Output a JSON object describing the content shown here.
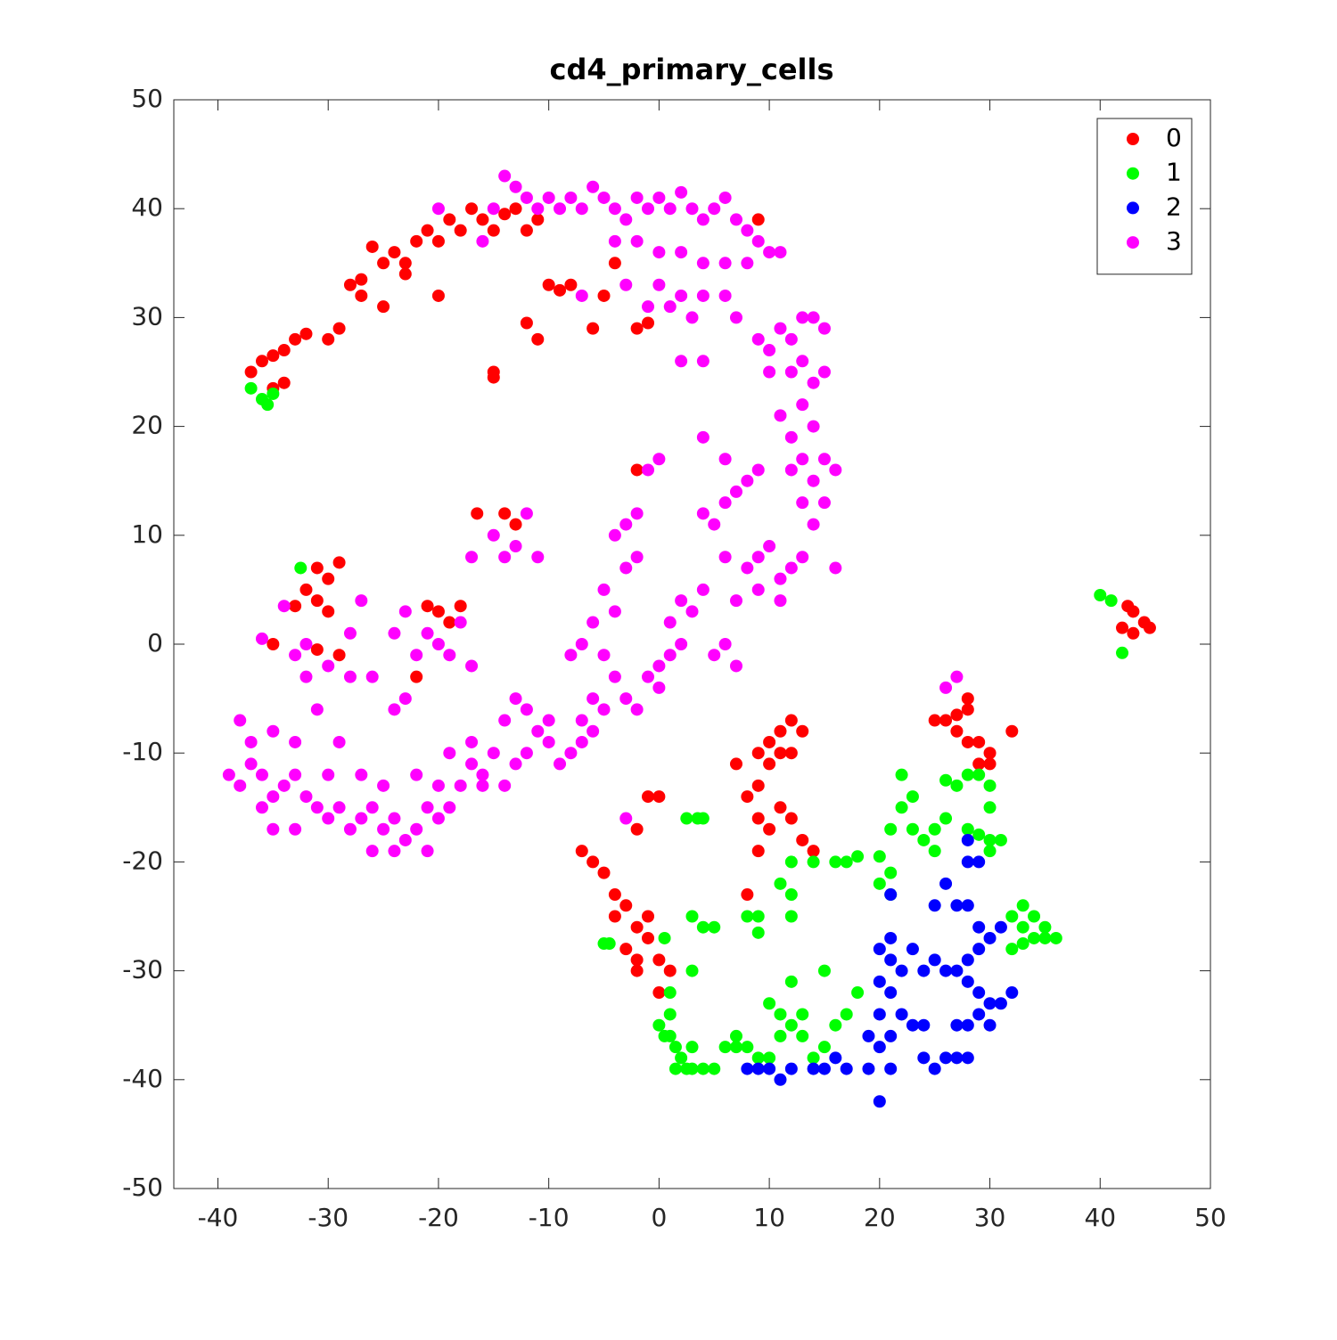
{
  "chart_data": {
    "type": "scatter",
    "title": "cd4_primary_cells",
    "xlim": [
      -44,
      50
    ],
    "ylim": [
      -50,
      50
    ],
    "xticks": [
      -40,
      -30,
      -20,
      -10,
      0,
      10,
      20,
      30,
      40,
      50
    ],
    "yticks": [
      -50,
      -40,
      -30,
      -20,
      -10,
      0,
      10,
      20,
      30,
      40,
      50
    ],
    "legend": "upper right",
    "series": [
      {
        "name": "0",
        "color": "#ff0000",
        "x": [
          -37,
          -36,
          -35,
          -34,
          -33,
          -32,
          -30,
          -29,
          -28,
          -27,
          -26,
          -25,
          -24,
          -23,
          -22,
          -21,
          -20,
          -19,
          -18,
          -17,
          -16,
          -15,
          -14,
          -13,
          -12,
          -11,
          -10,
          -9,
          -8,
          -6,
          -5,
          -4,
          -2,
          -1,
          9,
          -15,
          -15,
          -12,
          -11,
          -20,
          -34,
          -35,
          -25,
          -27,
          -23,
          -16.5,
          -14,
          -13,
          -2,
          -31,
          -30,
          -32,
          -31,
          -33,
          -30,
          -29,
          -35,
          -31,
          -29,
          -21,
          -20,
          -18,
          -19,
          -22,
          43,
          44,
          43,
          42,
          44.5,
          42.5,
          9,
          10,
          11,
          12,
          11,
          10,
          9,
          8,
          9,
          10,
          11,
          12,
          13,
          9,
          7,
          14,
          12,
          13,
          8,
          -7,
          -6,
          -5,
          -4,
          -3,
          -2,
          -3,
          -2,
          -1,
          -2,
          -1,
          0,
          1,
          0,
          -2,
          -1,
          0,
          -4,
          26,
          27,
          28,
          28,
          29,
          30,
          29,
          30,
          28,
          25,
          32,
          27
        ],
        "values": [
          25,
          26,
          26.5,
          27,
          28,
          28.5,
          28,
          29,
          33,
          33.5,
          36.5,
          35,
          36,
          35,
          37,
          38,
          37,
          39,
          38,
          40,
          39,
          38,
          39.5,
          40,
          38,
          39,
          33,
          32.5,
          33,
          29,
          32,
          35,
          29,
          29.5,
          39,
          25,
          24.5,
          29.5,
          28,
          32,
          24,
          23.5,
          31,
          32,
          34,
          12,
          12,
          11,
          16,
          7,
          6,
          5,
          4,
          3.5,
          3,
          7.5,
          0,
          -0.5,
          -1,
          3.5,
          3,
          3.5,
          2,
          -3,
          1,
          2,
          3,
          1.5,
          1.5,
          3.5,
          -10,
          -9,
          -8,
          -7,
          -10,
          -11,
          -13,
          -14,
          -16,
          -17,
          -15,
          -16,
          -18,
          -19,
          -11,
          -19,
          -10,
          -8,
          -23,
          -19,
          -20,
          -21,
          -23,
          -24,
          -26,
          -28,
          -29,
          -27,
          -30,
          -25,
          -29,
          -30,
          -32,
          -17,
          -14,
          -14,
          -25,
          -7,
          -8,
          -6,
          -5,
          -9,
          -10,
          -11,
          -11,
          -9,
          -7,
          -8,
          -6.5
        ]
      },
      {
        "name": "1",
        "color": "#00ff00",
        "x": [
          -37,
          -36,
          -35.5,
          -35,
          -32.5,
          40,
          41,
          42,
          -5,
          -4.5,
          0.5,
          1,
          1,
          1,
          0,
          0.5,
          1.5,
          2,
          3,
          2.5,
          3,
          4,
          5,
          1.5,
          3,
          3,
          4,
          5,
          2.5,
          3.5,
          4,
          6,
          7,
          8,
          7,
          9,
          10,
          11,
          10,
          11,
          12,
          13,
          12,
          13,
          14,
          15,
          15,
          16,
          17,
          18,
          8,
          9,
          9,
          11,
          12,
          12,
          14,
          12,
          16,
          17,
          18,
          20,
          21,
          20,
          21,
          21,
          22,
          23,
          24,
          25,
          25,
          26,
          22,
          23,
          26,
          27,
          28,
          29,
          30,
          30,
          30,
          31,
          29,
          28,
          30,
          33,
          33,
          34,
          35,
          35,
          32,
          32,
          33,
          34,
          36
        ],
        "values": [
          23.5,
          22.5,
          22,
          23,
          7,
          4.5,
          4,
          -0.8,
          -27.5,
          -27.5,
          -27,
          -32,
          -34,
          -36,
          -35,
          -36,
          -37,
          -38,
          -37,
          -39,
          -39,
          -39,
          -39,
          -39,
          -30,
          -25,
          -26,
          -26,
          -16,
          -16,
          -16,
          -37,
          -37,
          -37,
          -36,
          -38,
          -38,
          -36,
          -33,
          -34,
          -35,
          -34,
          -31,
          -36,
          -38,
          -37,
          -30,
          -35,
          -34,
          -32,
          -25,
          -25,
          -26.5,
          -22,
          -20,
          -23,
          -20,
          -25,
          -20,
          -20,
          -19.5,
          -19.5,
          -21,
          -22,
          -23,
          -17,
          -15,
          -17,
          -18,
          -17,
          -19,
          -16,
          -12,
          -14,
          -12.5,
          -13,
          -12,
          -12,
          -13,
          -15,
          -18,
          -18,
          -17.5,
          -17,
          -19,
          -24,
          -26,
          -27,
          -26,
          -27,
          -25,
          -28,
          -27.5,
          -25,
          -27
        ]
      },
      {
        "name": "2",
        "color": "#0000ff",
        "x": [
          28,
          29,
          28,
          21,
          26,
          27,
          28,
          25,
          29,
          30,
          31,
          29,
          28,
          27,
          28,
          29,
          30,
          31,
          32,
          29,
          30,
          28,
          27,
          25,
          26,
          24,
          23,
          20,
          21,
          20,
          21,
          20,
          21,
          22,
          23,
          24,
          19,
          20,
          21,
          19,
          17,
          16,
          15,
          14,
          12,
          11,
          10,
          9,
          8,
          20,
          26,
          27,
          25,
          28,
          24,
          22,
          21
        ],
        "values": [
          -18,
          -20,
          -20,
          -23,
          -22,
          -24,
          -24,
          -24,
          -26,
          -27,
          -26,
          -28,
          -29,
          -30,
          -31,
          -32,
          -33,
          -33,
          -32,
          -34,
          -35,
          -35,
          -35,
          -29,
          -30,
          -30,
          -28,
          -28,
          -29,
          -31,
          -32,
          -34,
          -36,
          -34,
          -35,
          -35,
          -36,
          -37,
          -39,
          -39,
          -39,
          -38,
          -39,
          -39,
          -39,
          -40,
          -39,
          -39,
          -39,
          -42,
          -38,
          -38,
          -39,
          -38,
          -38,
          -30,
          -27
        ]
      },
      {
        "name": "3",
        "color": "#ff00ff",
        "x": [
          -14,
          -13,
          -12,
          -11,
          -10,
          -8,
          -7,
          -6,
          -5,
          -4,
          -3,
          -2,
          -1,
          0,
          1,
          2,
          3,
          4,
          5,
          6,
          7,
          8,
          9,
          10,
          11,
          -4,
          -2,
          0,
          2,
          4,
          6,
          -3,
          -1,
          1,
          0,
          2,
          4,
          6,
          7,
          9,
          10,
          11,
          12,
          13,
          14,
          15,
          13,
          12,
          10,
          14,
          15,
          13,
          11,
          12,
          14,
          13,
          12,
          14,
          15,
          16,
          15,
          13,
          14,
          13,
          12,
          11,
          10,
          9,
          8,
          9,
          7,
          6,
          5,
          4,
          6,
          7,
          8,
          9,
          6,
          4,
          16,
          11,
          4,
          2,
          3,
          8,
          -20,
          -16,
          -15,
          -9,
          -7,
          -1,
          0,
          -2,
          -3,
          -4,
          -2,
          -3,
          -5,
          -4,
          -6,
          -7,
          -8,
          -5,
          -4,
          -3,
          -2,
          -1,
          0,
          1,
          2,
          1,
          2,
          3,
          4,
          5,
          6,
          7,
          0,
          -5,
          -6,
          -7,
          -8,
          -9,
          -10,
          -11,
          -12,
          -13,
          -14,
          -15,
          -16,
          -14,
          -13,
          -12,
          -10,
          -7,
          -6,
          -13,
          -14,
          -15,
          -17,
          -12,
          -11,
          -36,
          -34,
          -33,
          -32,
          -30,
          -28,
          -27,
          -26,
          -24,
          -23,
          -22,
          -21,
          -20,
          -19,
          -17,
          -18,
          -23,
          -24,
          -32,
          -28,
          -39,
          -38,
          -37,
          -36,
          -35,
          -34,
          -33,
          -32,
          -31,
          -30,
          -29,
          -28,
          -27,
          -26,
          -25,
          -24,
          -23,
          -22,
          -21,
          -20,
          -19,
          -18,
          -17,
          -16,
          -38,
          -37,
          -35,
          -33,
          -31,
          -29,
          -27,
          -25,
          -22,
          -20,
          -26,
          -24,
          -35,
          -33,
          -36,
          -19,
          -17,
          -21,
          -30,
          -3,
          27,
          26
        ],
        "values": [
          43,
          42,
          41,
          40,
          41,
          41,
          40,
          42,
          41,
          40,
          39,
          41,
          40,
          41,
          40,
          41.5,
          40,
          39,
          40,
          41,
          39,
          38,
          37,
          36,
          36,
          37,
          37,
          36,
          36,
          35,
          35,
          33,
          31,
          31,
          33,
          32,
          32,
          32,
          30,
          28,
          27,
          29,
          28,
          30,
          30,
          29,
          26,
          25,
          25,
          24,
          25,
          22,
          21,
          19,
          20,
          17,
          16,
          15,
          17,
          16,
          13,
          13,
          11,
          8,
          7,
          6,
          9,
          8,
          7,
          5,
          4,
          8,
          11,
          12,
          13,
          14,
          15,
          16,
          17,
          19,
          7,
          4,
          26,
          26,
          30,
          35,
          40,
          37,
          40,
          40,
          32,
          16,
          17,
          12,
          11,
          10,
          8,
          7,
          5,
          3,
          2,
          0,
          -1,
          -1,
          -3,
          -5,
          -6,
          -3,
          -2,
          -1,
          0,
          2,
          4,
          3,
          5,
          -1,
          0,
          -2,
          -4,
          -6,
          -8,
          -9,
          -10,
          -11,
          -9,
          -8,
          -6,
          -5,
          -7,
          -10,
          -12,
          -13,
          -11,
          -10,
          -7,
          -7,
          -5,
          9,
          8,
          10,
          8,
          12,
          8,
          0.5,
          3.5,
          -1,
          0,
          -2,
          1,
          4,
          -3,
          1,
          3,
          -1,
          1,
          0,
          -1,
          -2,
          2,
          -5,
          -6,
          -3,
          -3,
          -12,
          -13,
          -11,
          -12,
          -14,
          -13,
          -12,
          -14,
          -15,
          -16,
          -15,
          -17,
          -16,
          -15,
          -17,
          -16,
          -18,
          -17,
          -19,
          -16,
          -15,
          -13,
          -11,
          -13,
          -7,
          -9,
          -8,
          -9,
          -6,
          -9,
          -12,
          -13,
          -12,
          -13,
          -19,
          -19,
          -17,
          -17,
          -15,
          -10,
          -9,
          -15,
          -12,
          -16,
          -3,
          -4
        ]
      }
    ]
  }
}
